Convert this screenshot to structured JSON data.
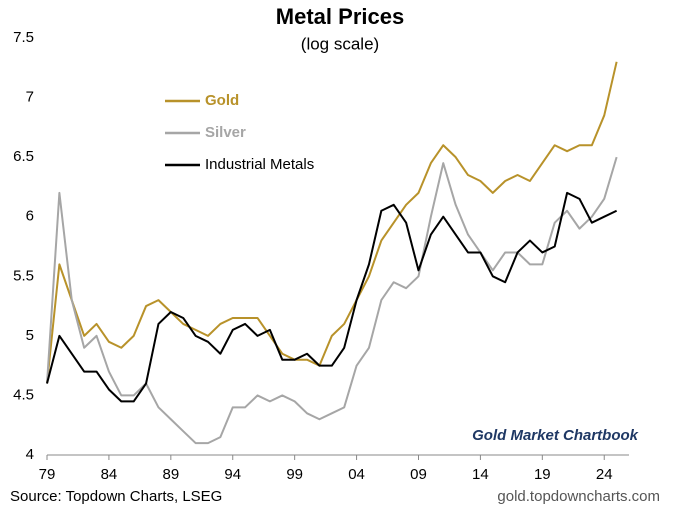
{
  "chart_data": {
    "type": "line",
    "title": "Metal Prices",
    "subtitle": "(log scale)",
    "annotation": "Gold Market Chartbook",
    "source": "Source: Topdown Charts, LSEG",
    "credit": "gold.topdowncharts.com",
    "x": [
      1979,
      1980,
      1981,
      1982,
      1983,
      1984,
      1985,
      1986,
      1987,
      1988,
      1989,
      1990,
      1991,
      1992,
      1993,
      1994,
      1995,
      1996,
      1997,
      1998,
      1999,
      2000,
      2001,
      2002,
      2003,
      2004,
      2005,
      2006,
      2007,
      2008,
      2009,
      2010,
      2011,
      2012,
      2013,
      2014,
      2015,
      2016,
      2017,
      2018,
      2019,
      2020,
      2021,
      2022,
      2023,
      2024,
      2025
    ],
    "series": [
      {
        "name": "Gold",
        "color": "#b8922a",
        "values": [
          4.6,
          5.6,
          5.3,
          5.0,
          5.1,
          4.95,
          4.9,
          5.0,
          5.25,
          5.3,
          5.2,
          5.1,
          5.05,
          5.0,
          5.1,
          5.15,
          5.15,
          5.15,
          5.0,
          4.85,
          4.8,
          4.8,
          4.75,
          5.0,
          5.1,
          5.3,
          5.5,
          5.8,
          5.95,
          6.1,
          6.2,
          6.45,
          6.6,
          6.5,
          6.35,
          6.3,
          6.2,
          6.3,
          6.35,
          6.3,
          6.45,
          6.6,
          6.55,
          6.6,
          6.6,
          6.85,
          7.3
        ]
      },
      {
        "name": "Silver",
        "color": "#a6a6a6",
        "values": [
          4.6,
          6.2,
          5.3,
          4.9,
          5.0,
          4.7,
          4.5,
          4.5,
          4.6,
          4.4,
          4.3,
          4.2,
          4.1,
          4.1,
          4.15,
          4.4,
          4.4,
          4.5,
          4.45,
          4.5,
          4.45,
          4.35,
          4.3,
          4.35,
          4.4,
          4.75,
          4.9,
          5.3,
          5.45,
          5.4,
          5.5,
          6.0,
          6.45,
          6.1,
          5.85,
          5.7,
          5.55,
          5.7,
          5.7,
          5.6,
          5.6,
          5.95,
          6.05,
          5.9,
          6.0,
          6.15,
          6.5
        ]
      },
      {
        "name": "Industrial Metals",
        "color": "#000000",
        "values": [
          4.6,
          5.0,
          4.85,
          4.7,
          4.7,
          4.55,
          4.45,
          4.45,
          4.6,
          5.1,
          5.2,
          5.15,
          5.0,
          4.95,
          4.85,
          5.05,
          5.1,
          5.0,
          5.05,
          4.8,
          4.8,
          4.85,
          4.75,
          4.75,
          4.9,
          5.3,
          5.6,
          6.05,
          6.1,
          5.95,
          5.55,
          5.85,
          6.0,
          5.85,
          5.7,
          5.7,
          5.5,
          5.45,
          5.7,
          5.8,
          5.7,
          5.75,
          6.2,
          6.15,
          5.95,
          6.0,
          6.05
        ]
      }
    ],
    "xlim": [
      1979,
      2026
    ],
    "xticks": [
      {
        "value": 1979,
        "label": "79"
      },
      {
        "value": 1984,
        "label": "84"
      },
      {
        "value": 1989,
        "label": "89"
      },
      {
        "value": 1994,
        "label": "94"
      },
      {
        "value": 1999,
        "label": "99"
      },
      {
        "value": 2004,
        "label": "04"
      },
      {
        "value": 2009,
        "label": "09"
      },
      {
        "value": 2014,
        "label": "14"
      },
      {
        "value": 2019,
        "label": "19"
      },
      {
        "value": 2024,
        "label": "24"
      }
    ],
    "ylim": [
      4,
      7.5
    ],
    "yticks": [
      4,
      4.5,
      5,
      5.5,
      6,
      6.5,
      7,
      7.5
    ],
    "grid": false
  }
}
